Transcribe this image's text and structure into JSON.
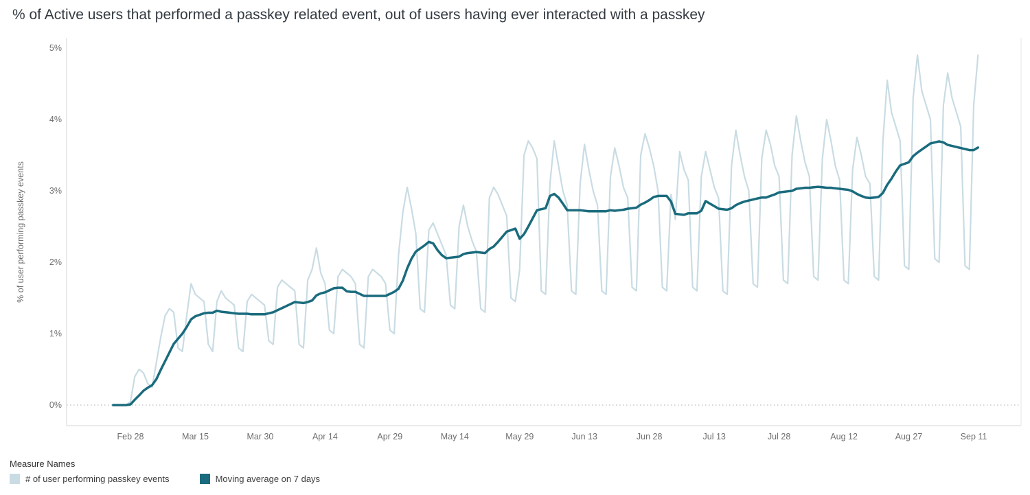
{
  "title": "% of Active users that performed a passkey related event, out of users having ever interacted with a passkey",
  "y_axis": {
    "title": "% of user performing passkey events",
    "ticks": [
      "0%",
      "1%",
      "2%",
      "3%",
      "4%",
      "5%"
    ],
    "min": 0,
    "max": 5
  },
  "x_axis": {
    "ticks": [
      "Feb 28",
      "Mar 15",
      "Mar 30",
      "Apr 14",
      "Apr 29",
      "May 14",
      "May 29",
      "Jun 13",
      "Jun 28",
      "Jul 13",
      "Jul 28",
      "Aug 12",
      "Aug 27",
      "Sep 11"
    ]
  },
  "legend": {
    "title": "Measure Names",
    "items": [
      {
        "label": "# of user performing passkey events",
        "color": "#c9dce3"
      },
      {
        "label": "Moving average on 7 days",
        "color": "#1a6b7d"
      }
    ]
  },
  "chart_data": {
    "type": "line",
    "title": "% of Active users that performed a passkey related event, out of users having ever interacted with a passkey",
    "xlabel": "",
    "ylabel": "% of user performing passkey events",
    "ylim": [
      0,
      5
    ],
    "y_unit": "percent",
    "grid": "zero-line-only",
    "legend_position": "bottom-left",
    "x_description": "one value per day; index 0 = Feb 24, last index 200 = Sep 12",
    "x_start_label": "Feb 24",
    "x_tick_labels": [
      "Feb 28",
      "Mar 15",
      "Mar 30",
      "Apr 14",
      "Apr 29",
      "May 14",
      "May 29",
      "Jun 13",
      "Jun 28",
      "Jul 13",
      "Jul 28",
      "Aug 12",
      "Aug 27",
      "Sep 11"
    ],
    "x_tick_indices": [
      4,
      19,
      34,
      49,
      64,
      79,
      94,
      109,
      124,
      139,
      154,
      169,
      184,
      199
    ],
    "series": [
      {
        "name": "# of user performing passkey events",
        "color": "#c9dce3",
        "values": [
          0,
          0,
          0,
          0,
          0.05,
          0.4,
          0.5,
          0.45,
          0.3,
          0.25,
          0.6,
          0.95,
          1.25,
          1.35,
          1.3,
          0.8,
          0.75,
          1.25,
          1.7,
          1.55,
          1.5,
          1.45,
          0.85,
          0.75,
          1.45,
          1.6,
          1.5,
          1.45,
          1.4,
          0.8,
          0.75,
          1.45,
          1.55,
          1.5,
          1.45,
          1.4,
          0.9,
          0.85,
          1.65,
          1.75,
          1.7,
          1.65,
          1.6,
          0.85,
          0.8,
          1.75,
          1.9,
          2.2,
          1.85,
          1.7,
          1.05,
          1.0,
          1.8,
          1.9,
          1.85,
          1.8,
          1.7,
          0.85,
          0.8,
          1.8,
          1.9,
          1.85,
          1.8,
          1.7,
          1.05,
          1.0,
          2.1,
          2.7,
          3.05,
          2.75,
          2.4,
          1.35,
          1.3,
          2.45,
          2.55,
          2.4,
          2.25,
          2.1,
          1.4,
          1.35,
          2.5,
          2.8,
          2.5,
          2.3,
          2.15,
          1.35,
          1.3,
          2.9,
          3.05,
          2.95,
          2.8,
          2.65,
          1.5,
          1.45,
          1.9,
          3.5,
          3.7,
          3.6,
          3.45,
          1.6,
          1.55,
          3.1,
          3.7,
          3.35,
          3.0,
          2.8,
          1.6,
          1.55,
          3.1,
          3.65,
          3.3,
          3.0,
          2.8,
          1.6,
          1.55,
          3.2,
          3.6,
          3.35,
          3.05,
          2.9,
          1.65,
          1.6,
          3.5,
          3.8,
          3.6,
          3.35,
          3.0,
          1.65,
          1.6,
          2.95,
          2.6,
          3.55,
          3.3,
          3.15,
          1.65,
          1.6,
          3.2,
          3.55,
          3.3,
          3.05,
          2.9,
          1.6,
          1.55,
          3.35,
          3.85,
          3.5,
          3.2,
          3.0,
          1.7,
          1.65,
          3.45,
          3.85,
          3.65,
          3.35,
          3.2,
          1.75,
          1.7,
          3.5,
          4.05,
          3.7,
          3.4,
          3.2,
          1.8,
          1.75,
          3.45,
          4.0,
          3.7,
          3.35,
          3.15,
          1.75,
          1.7,
          3.3,
          3.75,
          3.5,
          3.2,
          3.1,
          1.8,
          1.75,
          3.7,
          4.55,
          4.1,
          3.9,
          3.7,
          1.95,
          1.9,
          4.3,
          4.9,
          4.4,
          4.2,
          4.0,
          2.05,
          2.0,
          4.2,
          4.65,
          4.3,
          4.1,
          3.9,
          1.95,
          1.9,
          4.2,
          4.9
        ]
      },
      {
        "name": "Moving average on 7 days",
        "color": "#1a6b7d",
        "window": 7,
        "derived_from": "# of user performing passkey events",
        "note": "trailing 7-day moving average of the daily series; starts at 0%, plateaus ~1.25% mid-Mar, ~1.4-1.6% in Apr, peaks 2.25% May 8, ~2.7% through Jun, ~2.75-3.05% Jul-early Aug, dips ~2.9% mid-Aug, rises to ~3.7% by Sep 1, ends ~3.6% Sep 12"
      }
    ]
  }
}
